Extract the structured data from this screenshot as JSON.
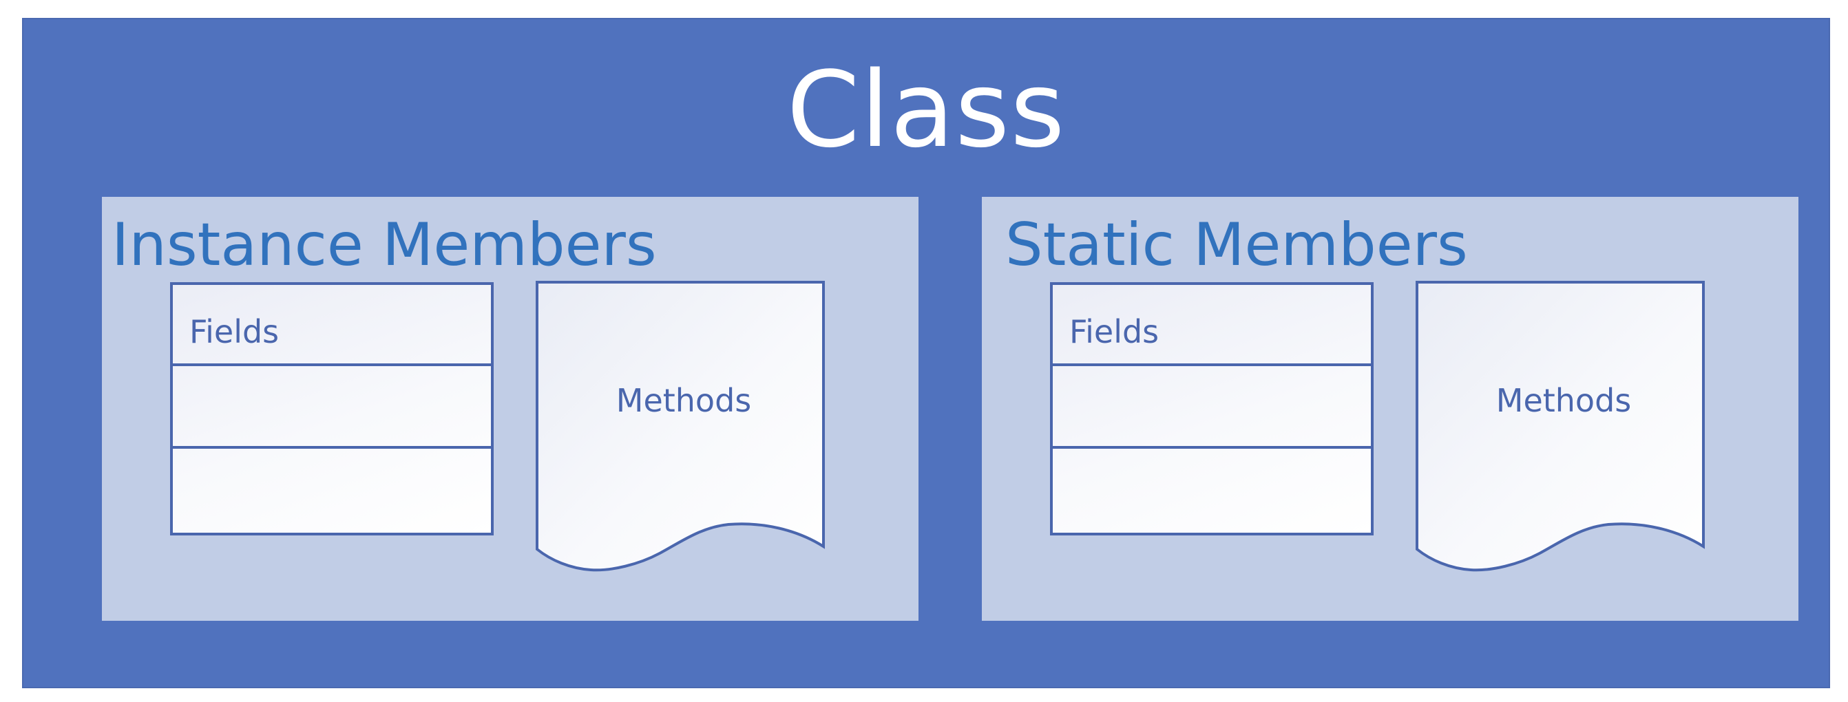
{
  "diagram": {
    "title": "Class",
    "colors": {
      "outer": "#5072be",
      "panel": "#c1cde6",
      "panel_title": "#3172bd",
      "shape_stroke": "#4a66ad",
      "title_text": "#ffffff"
    },
    "panels": [
      {
        "title": "Instance Members",
        "fields_label": "Fields",
        "methods_label": "Methods"
      },
      {
        "title": "Static Members",
        "fields_label": "Fields",
        "methods_label": "Methods"
      }
    ]
  }
}
